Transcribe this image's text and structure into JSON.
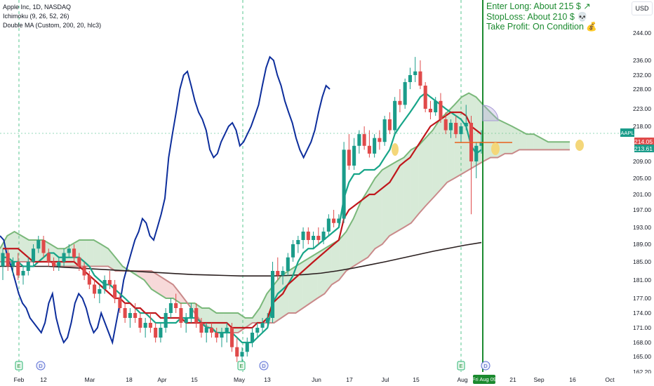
{
  "legend": {
    "title": "Apple Inc, 1D, NASDAQ",
    "indicator1": "Ichimoku (9, 26, 52, 26)",
    "indicator2": "Double MA (Custom, 200, 20, hlc3)"
  },
  "note": {
    "line1": "Enter Long: About 215 $ ↗",
    "line2": "StopLoss: About 210 $ 💀",
    "line3": "Take Profit: On Condition 💰"
  },
  "currency": "USD",
  "colors": {
    "up": "#1a9c8a",
    "down": "#e04a4a",
    "conversion": "#17a589",
    "base": "#c0171c",
    "lagging": "#0d2e9c",
    "ma200": "#2a1f1f",
    "cloud_bull": "#7ab87a",
    "cloud_bear": "#c98a8a",
    "vline": "#1b8a2f"
  },
  "chart_data": {
    "type": "candlestick",
    "symbol": "AAPL",
    "price_axis": {
      "ticks": [
        244,
        236,
        232,
        228,
        223,
        218,
        214.05,
        213.61,
        209,
        205,
        201,
        197,
        193,
        189,
        185,
        181,
        177,
        174,
        171,
        168,
        165,
        162.2
      ],
      "labels": [
        "244.00",
        "236.00",
        "232.00",
        "228.00",
        "223.00",
        "218.00",
        "214.05",
        "213.61",
        "209.00",
        "205.00",
        "201.00",
        "197.00",
        "193.00",
        "189.00",
        "185.00",
        "181.00",
        "177.00",
        "174.00",
        "171.00",
        "168.00",
        "165.00",
        "162.20"
      ]
    },
    "time_axis": [
      "Feb",
      "12",
      "Mar",
      "18",
      "Apr",
      "15",
      "May",
      "13",
      "Jun",
      "17",
      "Jul",
      "15",
      "Aug",
      "21",
      "Sep",
      "16",
      "Oct"
    ],
    "current_date_label": "Fri Aug 09",
    "last_price_tags": [
      "AAPL",
      "214.05",
      "213.61"
    ],
    "event_markers": [
      "E",
      "D",
      "E",
      "D",
      "E",
      "D"
    ],
    "candles": [
      [
        184,
        188,
        181,
        187
      ],
      [
        187,
        188,
        183,
        184
      ],
      [
        184,
        186,
        182,
        185
      ],
      [
        185,
        187,
        181,
        182
      ],
      [
        182,
        184,
        180,
        183
      ],
      [
        183,
        186,
        182,
        185
      ],
      [
        185,
        189,
        184,
        188
      ],
      [
        188,
        191,
        187,
        190
      ],
      [
        190,
        191,
        186,
        187
      ],
      [
        187,
        188,
        184,
        185
      ],
      [
        185,
        186,
        183,
        184
      ],
      [
        184,
        186,
        183,
        185
      ],
      [
        185,
        188,
        184,
        187
      ],
      [
        187,
        189,
        186,
        188
      ],
      [
        188,
        189,
        185,
        186
      ],
      [
        186,
        187,
        183,
        184
      ],
      [
        184,
        185,
        181,
        182
      ],
      [
        182,
        183,
        179,
        180
      ],
      [
        180,
        181,
        177,
        178
      ],
      [
        178,
        180,
        176,
        179
      ],
      [
        179,
        182,
        178,
        181
      ],
      [
        181,
        183,
        179,
        180
      ],
      [
        180,
        181,
        176,
        177
      ],
      [
        177,
        178,
        174,
        175
      ],
      [
        175,
        176,
        172,
        173
      ],
      [
        173,
        175,
        171,
        174
      ],
      [
        174,
        176,
        172,
        173
      ],
      [
        173,
        174,
        170,
        171
      ],
      [
        171,
        173,
        169,
        172
      ],
      [
        172,
        174,
        170,
        171
      ],
      [
        171,
        172,
        168,
        169
      ],
      [
        169,
        172,
        168,
        171
      ],
      [
        171,
        175,
        170,
        174
      ],
      [
        174,
        177,
        173,
        176
      ],
      [
        176,
        178,
        174,
        175
      ],
      [
        175,
        176,
        171,
        172
      ],
      [
        172,
        174,
        170,
        173
      ],
      [
        173,
        176,
        172,
        175
      ],
      [
        175,
        176,
        171,
        172
      ],
      [
        172,
        173,
        169,
        170
      ],
      [
        170,
        172,
        168,
        171
      ],
      [
        171,
        172,
        169,
        170
      ],
      [
        170,
        171,
        168,
        169
      ],
      [
        169,
        171,
        167,
        170
      ],
      [
        170,
        172,
        168,
        171
      ],
      [
        171,
        172,
        166,
        167
      ],
      [
        167,
        169,
        164,
        165
      ],
      [
        165,
        167,
        164,
        166
      ],
      [
        166,
        169,
        165,
        168
      ],
      [
        168,
        171,
        167,
        170
      ],
      [
        170,
        172,
        169,
        171
      ],
      [
        171,
        173,
        170,
        172
      ],
      [
        172,
        174,
        171,
        173
      ],
      [
        173,
        185,
        172,
        183
      ],
      [
        183,
        186,
        181,
        182
      ],
      [
        182,
        184,
        180,
        183
      ],
      [
        183,
        187,
        182,
        186
      ],
      [
        186,
        190,
        185,
        189
      ],
      [
        189,
        191,
        187,
        190
      ],
      [
        190,
        193,
        188,
        192
      ],
      [
        192,
        193,
        189,
        190
      ],
      [
        190,
        192,
        188,
        191
      ],
      [
        191,
        193,
        189,
        190
      ],
      [
        190,
        193,
        189,
        192
      ],
      [
        192,
        196,
        191,
        195
      ],
      [
        195,
        197,
        193,
        194
      ],
      [
        194,
        196,
        193,
        195
      ],
      [
        195,
        214,
        194,
        212
      ],
      [
        212,
        216,
        207,
        208
      ],
      [
        208,
        215,
        207,
        213
      ],
      [
        213,
        217,
        211,
        216
      ],
      [
        216,
        218,
        212,
        213
      ],
      [
        213,
        217,
        210,
        211
      ],
      [
        211,
        216,
        210,
        215
      ],
      [
        215,
        217,
        212,
        214
      ],
      [
        214,
        221,
        213,
        220
      ],
      [
        220,
        222,
        216,
        217
      ],
      [
        217,
        226,
        216,
        225
      ],
      [
        225,
        228,
        222,
        224
      ],
      [
        224,
        231,
        223,
        230
      ],
      [
        230,
        234,
        228,
        232
      ],
      [
        232,
        237,
        230,
        233
      ],
      [
        233,
        236,
        228,
        229
      ],
      [
        229,
        230,
        222,
        223
      ],
      [
        223,
        225,
        220,
        222
      ],
      [
        222,
        226,
        221,
        225
      ],
      [
        225,
        227,
        219,
        220
      ],
      [
        220,
        222,
        216,
        217
      ],
      [
        217,
        220,
        215,
        219
      ],
      [
        219,
        221,
        215,
        216
      ],
      [
        216,
        219,
        214,
        218
      ],
      [
        218,
        224,
        217,
        219
      ],
      [
        219,
        221,
        196,
        209
      ],
      [
        209,
        214,
        205,
        213
      ],
      [
        213,
        217,
        211,
        214
      ]
    ],
    "series": [
      {
        "name": "Conversion Line",
        "values": [
          186,
          186,
          185,
          185,
          184,
          184,
          184,
          185,
          186,
          187,
          187,
          186,
          186,
          186,
          186,
          186,
          185,
          184,
          182,
          181,
          180,
          180,
          179,
          178,
          177,
          176,
          175,
          174,
          174,
          173,
          172,
          172,
          172,
          172,
          172,
          173,
          173,
          173,
          173,
          172,
          171,
          171,
          170,
          170,
          170,
          170,
          169,
          168,
          168,
          168,
          169,
          170,
          171,
          176,
          178,
          179,
          180,
          182,
          185,
          187,
          188,
          188,
          189,
          190,
          191,
          192,
          193,
          200,
          204,
          206,
          206,
          207,
          207,
          207,
          208,
          210,
          212,
          216,
          218,
          220,
          222,
          224,
          226,
          227,
          226,
          225,
          224,
          223,
          222,
          221,
          220,
          218,
          213,
          211,
          212
        ]
      },
      {
        "name": "Base Line",
        "values": [
          188,
          188,
          188,
          188,
          187,
          186,
          185,
          185,
          185,
          185,
          185,
          185,
          185,
          185,
          185,
          184,
          183,
          182,
          181,
          180,
          179,
          178,
          177,
          177,
          176,
          176,
          175,
          175,
          174,
          174,
          174,
          173,
          173,
          173,
          173,
          173,
          172,
          172,
          172,
          172,
          172,
          172,
          172,
          172,
          172,
          171,
          171,
          171,
          171,
          171,
          172,
          172,
          173,
          176,
          177,
          178,
          180,
          181,
          182,
          183,
          184,
          185,
          186,
          187,
          188,
          189,
          190,
          195,
          197,
          198,
          199,
          200,
          201,
          201,
          202,
          203,
          204,
          206,
          208,
          209,
          210,
          212,
          214,
          216,
          218,
          219,
          220,
          221,
          222,
          222,
          222,
          221,
          218,
          217,
          216
        ]
      }
    ]
  }
}
